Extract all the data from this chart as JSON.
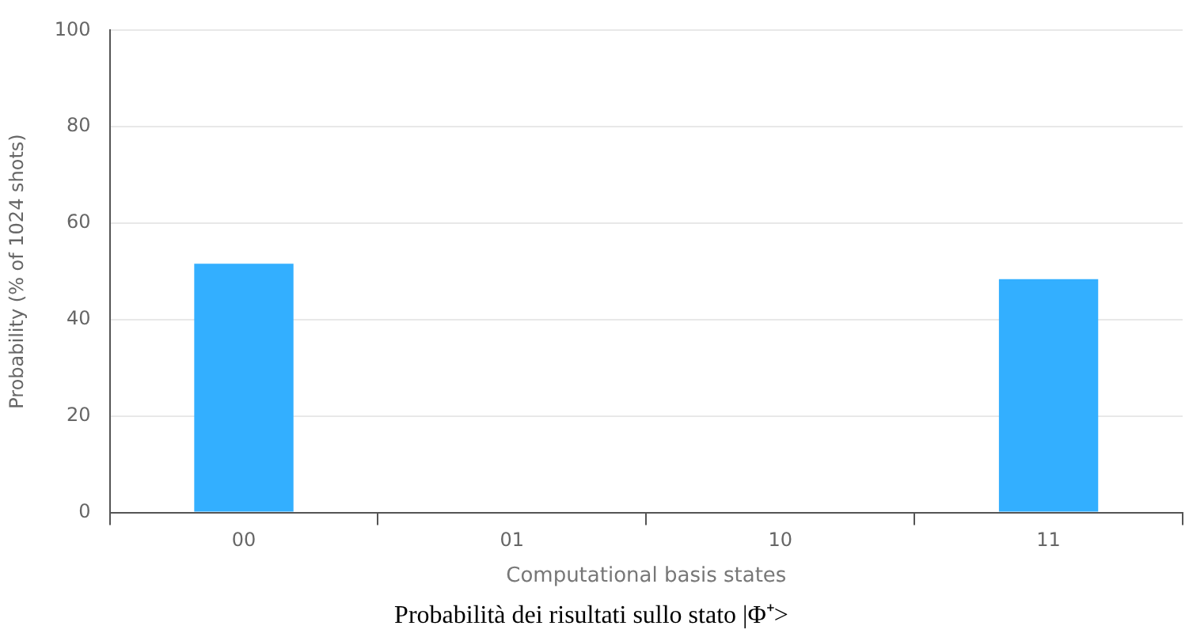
{
  "chart_data": {
    "type": "bar",
    "title": "Probabilità dei risultati sullo stato |Φ⁺>",
    "xlabel": "Computational basis states",
    "ylabel": "Probability (% of 1024 shots)",
    "categories": [
      "00",
      "01",
      "10",
      "11"
    ],
    "values": [
      51.6,
      0,
      0,
      48.4
    ],
    "color": "#33afff",
    "ylim": [
      0,
      100
    ],
    "yticks": [
      0,
      20,
      40,
      60,
      80,
      100
    ],
    "grid": "y"
  }
}
